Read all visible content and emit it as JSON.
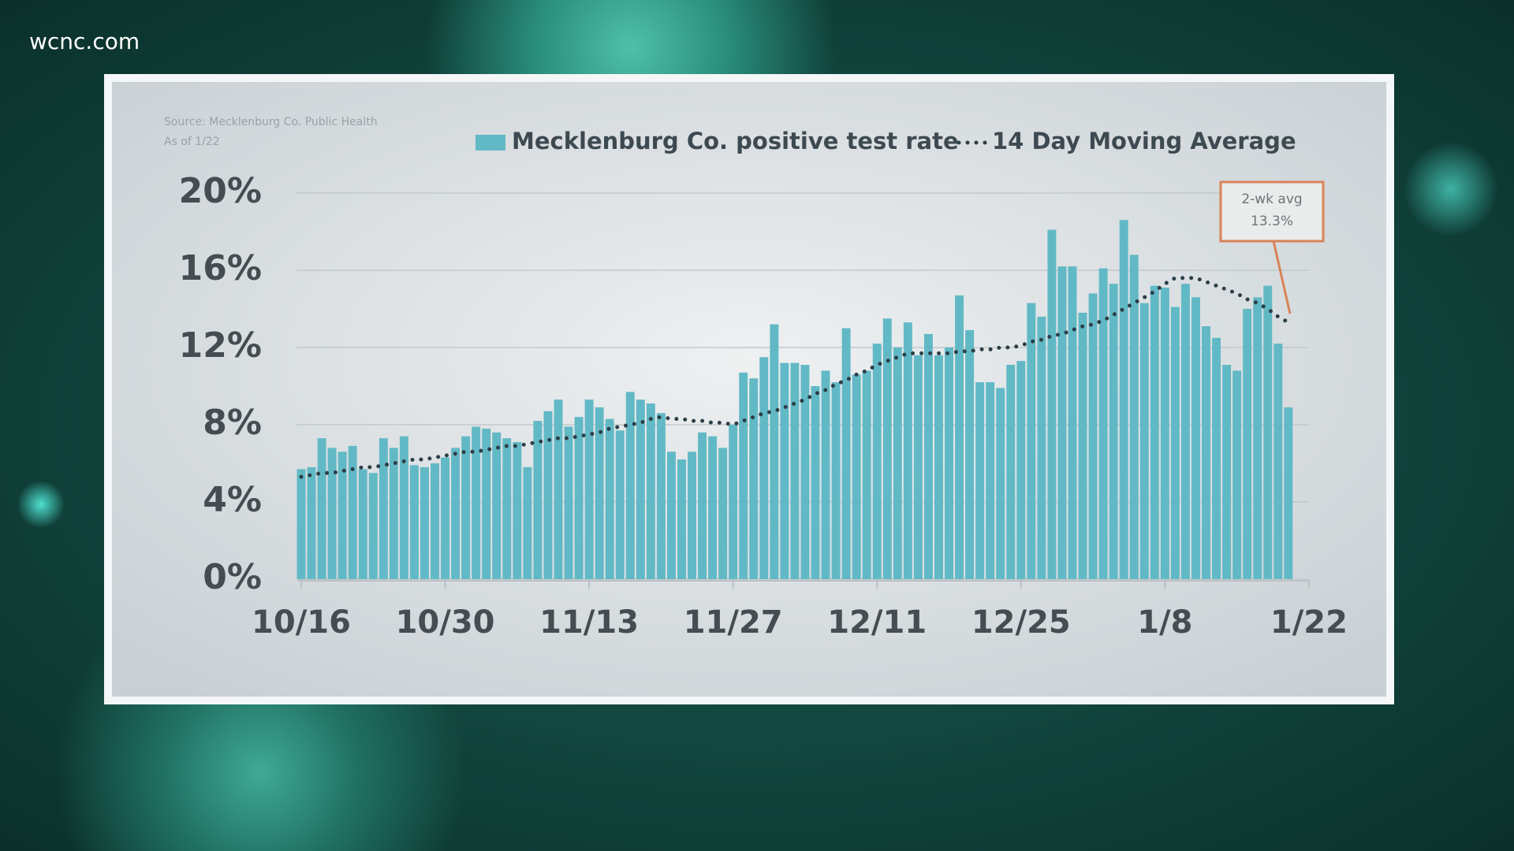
{
  "brand": "wcnc.com",
  "source": [
    "Source: Mecklenburg Co. Public Health",
    "As of 1/22"
  ],
  "chart_data": {
    "type": "bar",
    "categories": [
      "10/16",
      null,
      null,
      null,
      null,
      null,
      null,
      null,
      null,
      null,
      null,
      null,
      null,
      null,
      "10/30",
      null,
      null,
      null,
      null,
      null,
      null,
      null,
      null,
      null,
      null,
      null,
      null,
      null,
      "11/13",
      null,
      null,
      null,
      null,
      null,
      null,
      null,
      null,
      null,
      null,
      null,
      null,
      null,
      "11/27",
      null,
      null,
      null,
      null,
      null,
      null,
      null,
      null,
      null,
      null,
      null,
      null,
      null,
      "12/11",
      null,
      null,
      null,
      null,
      null,
      null,
      null,
      null,
      null,
      null,
      null,
      null,
      null,
      "12/25",
      null,
      null,
      null,
      null,
      null,
      null,
      null,
      null,
      null,
      null,
      null,
      null,
      null,
      "1/8",
      null,
      null,
      null,
      null,
      null,
      null,
      null,
      null,
      null,
      null,
      null,
      null,
      null,
      "1/22"
    ],
    "series": [
      {
        "name": "Mecklenburg Co. positive test rate",
        "type": "bar",
        "color": "#62b9c6",
        "values": [
          5.7,
          5.8,
          7.3,
          6.8,
          6.6,
          6.9,
          5.7,
          5.5,
          7.3,
          6.8,
          7.4,
          5.9,
          5.8,
          6.0,
          6.3,
          6.8,
          7.4,
          7.9,
          7.8,
          7.6,
          7.3,
          7.1,
          5.8,
          8.2,
          8.7,
          9.3,
          7.9,
          8.4,
          9.3,
          8.9,
          8.3,
          7.7,
          9.7,
          9.3,
          9.1,
          8.6,
          6.6,
          6.2,
          6.6,
          7.6,
          7.4,
          6.8,
          8.0,
          10.7,
          10.4,
          11.5,
          13.2,
          11.2,
          11.2,
          11.1,
          10.0,
          10.8,
          10.2,
          13.0,
          10.6,
          10.8,
          12.2,
          13.5,
          12.0,
          13.3,
          11.6,
          12.7,
          11.6,
          12.0,
          14.7,
          12.9,
          10.2,
          10.2,
          9.9,
          11.1,
          11.3,
          14.3,
          13.6,
          18.1,
          16.2,
          16.2,
          13.8,
          14.8,
          16.1,
          15.3,
          18.6,
          16.8,
          14.3,
          15.2,
          15.1,
          14.1,
          15.3,
          14.6,
          13.1,
          12.5,
          11.1,
          10.8,
          14.0,
          14.6,
          15.2,
          12.2,
          8.9,
          null,
          null
        ]
      },
      {
        "name": "14 Day Moving Average",
        "type": "line",
        "color": "#2c3e48",
        "values": [
          5.3,
          5.4,
          5.5,
          5.5,
          5.6,
          5.7,
          5.8,
          5.8,
          5.9,
          6.0,
          6.1,
          6.2,
          6.2,
          6.3,
          6.4,
          6.5,
          6.6,
          6.6,
          6.7,
          6.8,
          6.9,
          6.9,
          7.0,
          7.1,
          7.2,
          7.3,
          7.3,
          7.4,
          7.5,
          7.6,
          7.8,
          7.9,
          8.0,
          8.1,
          8.3,
          8.4,
          8.3,
          8.3,
          8.2,
          8.2,
          8.1,
          8.1,
          8.0,
          8.2,
          8.4,
          8.6,
          8.7,
          8.9,
          9.1,
          9.3,
          9.6,
          9.8,
          10.1,
          10.3,
          10.6,
          10.8,
          11.1,
          11.3,
          11.5,
          11.7,
          11.7,
          11.7,
          11.7,
          11.7,
          11.8,
          11.8,
          11.9,
          11.9,
          12.0,
          12.0,
          12.1,
          12.3,
          12.4,
          12.6,
          12.7,
          12.9,
          13.1,
          13.2,
          13.4,
          13.7,
          14.0,
          14.3,
          14.6,
          14.9,
          15.3,
          15.6,
          15.6,
          15.6,
          15.4,
          15.2,
          15.0,
          14.8,
          14.5,
          14.3,
          14.0,
          13.6,
          13.3,
          null,
          null
        ]
      }
    ],
    "ylim": [
      0,
      20
    ],
    "yticks": [
      {
        "value": 0,
        "label": "0%"
      },
      {
        "value": 4,
        "label": "4%"
      },
      {
        "value": 8,
        "label": "8%"
      },
      {
        "value": 12,
        "label": "12%"
      },
      {
        "value": 16,
        "label": "16%"
      },
      {
        "value": 20,
        "label": "20%"
      }
    ],
    "grid": true,
    "legend": "top",
    "annotation": [
      "2-wk avg",
      "13.3%"
    ]
  }
}
